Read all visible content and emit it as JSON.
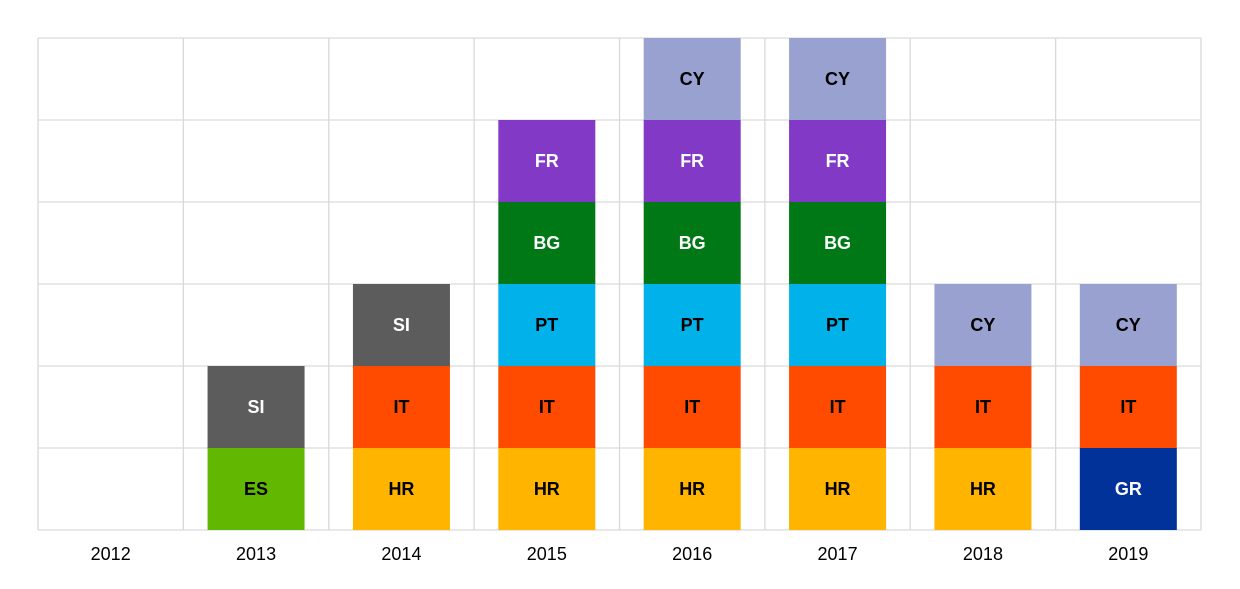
{
  "chart_data": {
    "type": "bar",
    "stacked": true,
    "categories": [
      "2012",
      "2013",
      "2014",
      "2015",
      "2016",
      "2017",
      "2018",
      "2019"
    ],
    "ylim": [
      0,
      6
    ],
    "grid": true,
    "stacks": [
      [],
      [
        "ES",
        "SI"
      ],
      [
        "HR",
        "IT",
        "SI"
      ],
      [
        "HR",
        "IT",
        "PT",
        "BG",
        "FR"
      ],
      [
        "HR",
        "IT",
        "PT",
        "BG",
        "FR",
        "CY"
      ],
      [
        "HR",
        "IT",
        "PT",
        "BG",
        "FR",
        "CY"
      ],
      [
        "HR",
        "IT",
        "CY"
      ],
      [
        "GR",
        "IT",
        "CY"
      ]
    ],
    "colors": {
      "ES": {
        "fill": "#62b800",
        "text": "#000000"
      },
      "SI": {
        "fill": "#5c5c5c",
        "text": "#ffffff"
      },
      "HR": {
        "fill": "#ffb400",
        "text": "#000000"
      },
      "IT": {
        "fill": "#ff4b00",
        "text": "#000000"
      },
      "PT": {
        "fill": "#00b1ea",
        "text": "#000000"
      },
      "BG": {
        "fill": "#007816",
        "text": "#ffffff"
      },
      "FR": {
        "fill": "#8139c6",
        "text": "#ffffff"
      },
      "CY": {
        "fill": "#98a1d0",
        "text": "#000000"
      },
      "GR": {
        "fill": "#003299",
        "text": "#ffffff"
      }
    },
    "gridline_color": "#d9d9d9"
  }
}
